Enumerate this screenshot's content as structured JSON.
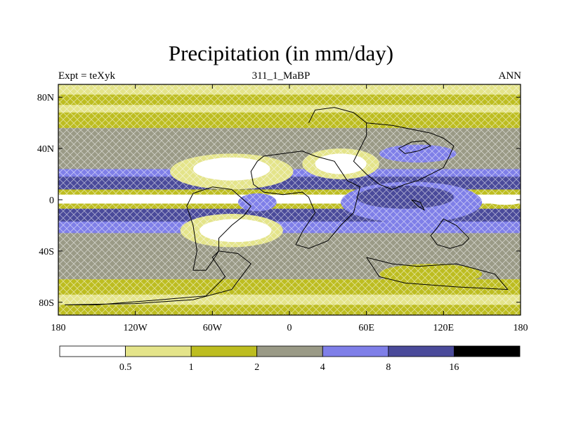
{
  "title": "Precipitation (in mm/day)",
  "subtitle_left": "Expt = teXyk",
  "subtitle_center": "311_1_MaBP",
  "subtitle_right": "ANN",
  "axes": {
    "x_ticks": [
      "180",
      "120W",
      "60W",
      "0",
      "60E",
      "120E",
      "180"
    ],
    "y_ticks": [
      "80N",
      "40N",
      "0",
      "40S",
      "80S"
    ]
  },
  "colorbar": {
    "colors": [
      "#ffffff",
      "#e4e48a",
      "#bdbd20",
      "#9a9a86",
      "#7f7fe8",
      "#4a4a9a",
      "#000000"
    ],
    "labels": [
      "0.5",
      "1",
      "2",
      "4",
      "8",
      "16"
    ]
  },
  "bands": [
    {
      "level": 1,
      "from": 90,
      "to": 82
    },
    {
      "level": 2,
      "from": 82,
      "to": 74
    },
    {
      "level": 1,
      "from": 74,
      "to": 68
    },
    {
      "level": 2,
      "from": 68,
      "to": 56
    },
    {
      "level": 3,
      "from": 56,
      "to": 36
    },
    {
      "level": 3,
      "from": 36,
      "to": 24
    },
    {
      "level": 4,
      "from": 24,
      "to": 18
    },
    {
      "level": 5,
      "from": 18,
      "to": 8
    },
    {
      "level": 2,
      "from": 8,
      "to": 4
    },
    {
      "level": 0,
      "from": 4,
      "to": -3
    },
    {
      "level": 2,
      "from": -3,
      "to": -7
    },
    {
      "level": 5,
      "from": -7,
      "to": -17
    },
    {
      "level": 4,
      "from": -17,
      "to": -26
    },
    {
      "level": 3,
      "from": -26,
      "to": -62
    },
    {
      "level": 2,
      "from": -62,
      "to": -74
    },
    {
      "level": 1,
      "from": -74,
      "to": -82
    },
    {
      "level": 2,
      "from": -82,
      "to": -90
    }
  ],
  "patches": [
    {
      "level": 1,
      "cx": -45,
      "cy": 22,
      "rx": 48,
      "ry": 14
    },
    {
      "level": 0,
      "cx": -45,
      "cy": 24,
      "rx": 30,
      "ry": 9
    },
    {
      "level": 1,
      "cx": 40,
      "cy": 28,
      "rx": 30,
      "ry": 12
    },
    {
      "level": 0,
      "cx": 40,
      "cy": 28,
      "rx": 20,
      "ry": 8
    },
    {
      "level": 1,
      "cx": -45,
      "cy": -24,
      "rx": 40,
      "ry": 13
    },
    {
      "level": 0,
      "cx": -42,
      "cy": -24,
      "rx": 28,
      "ry": 9
    },
    {
      "level": 4,
      "cx": 95,
      "cy": -2,
      "rx": 55,
      "ry": 16
    },
    {
      "level": 5,
      "cx": 90,
      "cy": 2,
      "rx": 38,
      "ry": 9
    },
    {
      "level": 4,
      "cx": 100,
      "cy": 36,
      "rx": 30,
      "ry": 7
    },
    {
      "level": 4,
      "cx": -25,
      "cy": -2,
      "rx": 15,
      "ry": 7
    },
    {
      "level": 0,
      "cx": 168,
      "cy": 0,
      "rx": 16,
      "ry": 4
    },
    {
      "level": 2,
      "cx": 110,
      "cy": -58,
      "rx": 40,
      "ry": 8
    }
  ],
  "coastlines": [
    [
      [
        -175,
        -82
      ],
      [
        -120,
        -81
      ],
      [
        -75,
        -78
      ],
      [
        -45,
        -70
      ],
      [
        -30,
        -50
      ],
      [
        -40,
        -42
      ],
      [
        -55,
        -40
      ],
      [
        -60,
        -45
      ],
      [
        -50,
        -60
      ],
      [
        -65,
        -75
      ],
      [
        -100,
        -78
      ],
      [
        -150,
        -82
      ],
      [
        -175,
        -82
      ]
    ],
    [
      [
        -5,
        36
      ],
      [
        -20,
        34
      ],
      [
        -25,
        30
      ],
      [
        -30,
        22
      ],
      [
        -28,
        12
      ],
      [
        -20,
        6
      ],
      [
        -5,
        4
      ],
      [
        10,
        6
      ],
      [
        15,
        2
      ],
      [
        20,
        -10
      ],
      [
        10,
        -25
      ],
      [
        5,
        -35
      ],
      [
        15,
        -38
      ],
      [
        30,
        -32
      ],
      [
        40,
        -20
      ],
      [
        50,
        -10
      ],
      [
        55,
        10
      ],
      [
        45,
        15
      ],
      [
        35,
        30
      ],
      [
        20,
        34
      ],
      [
        10,
        38
      ],
      [
        -5,
        36
      ]
    ],
    [
      [
        -60,
        10
      ],
      [
        -45,
        8
      ],
      [
        -30,
        -5
      ],
      [
        -35,
        -12
      ],
      [
        -45,
        -20
      ],
      [
        -55,
        -30
      ],
      [
        -55,
        -40
      ],
      [
        -60,
        -48
      ],
      [
        -65,
        -55
      ],
      [
        -75,
        -55
      ],
      [
        -72,
        -40
      ],
      [
        -75,
        -20
      ],
      [
        -80,
        -5
      ],
      [
        -75,
        5
      ],
      [
        -60,
        10
      ]
    ],
    [
      [
        15,
        60
      ],
      [
        20,
        70
      ],
      [
        35,
        72
      ],
      [
        50,
        68
      ],
      [
        60,
        60
      ],
      [
        60,
        50
      ],
      [
        55,
        40
      ],
      [
        50,
        30
      ],
      [
        60,
        20
      ],
      [
        70,
        12
      ],
      [
        80,
        8
      ],
      [
        90,
        12
      ],
      [
        100,
        15
      ],
      [
        110,
        20
      ],
      [
        120,
        25
      ],
      [
        125,
        35
      ],
      [
        128,
        42
      ],
      [
        120,
        48
      ],
      [
        110,
        52
      ],
      [
        95,
        55
      ],
      [
        80,
        58
      ],
      [
        60,
        60
      ]
    ],
    [
      [
        140,
        -30
      ],
      [
        130,
        -20
      ],
      [
        120,
        -15
      ],
      [
        115,
        -22
      ],
      [
        110,
        -28
      ],
      [
        115,
        -35
      ],
      [
        125,
        -38
      ],
      [
        135,
        -35
      ],
      [
        140,
        -30
      ]
    ],
    [
      [
        85,
        40
      ],
      [
        95,
        45
      ],
      [
        105,
        46
      ],
      [
        110,
        42
      ],
      [
        100,
        38
      ],
      [
        90,
        36
      ],
      [
        85,
        40
      ]
    ],
    [
      [
        95,
        0
      ],
      [
        100,
        -5
      ],
      [
        105,
        -8
      ],
      [
        102,
        -2
      ],
      [
        95,
        0
      ]
    ],
    [
      [
        60,
        -45
      ],
      [
        80,
        -50
      ],
      [
        100,
        -52
      ],
      [
        130,
        -50
      ],
      [
        160,
        -58
      ],
      [
        170,
        -70
      ],
      [
        130,
        -68
      ],
      [
        90,
        -65
      ],
      [
        70,
        -60
      ],
      [
        60,
        -45
      ]
    ]
  ]
}
